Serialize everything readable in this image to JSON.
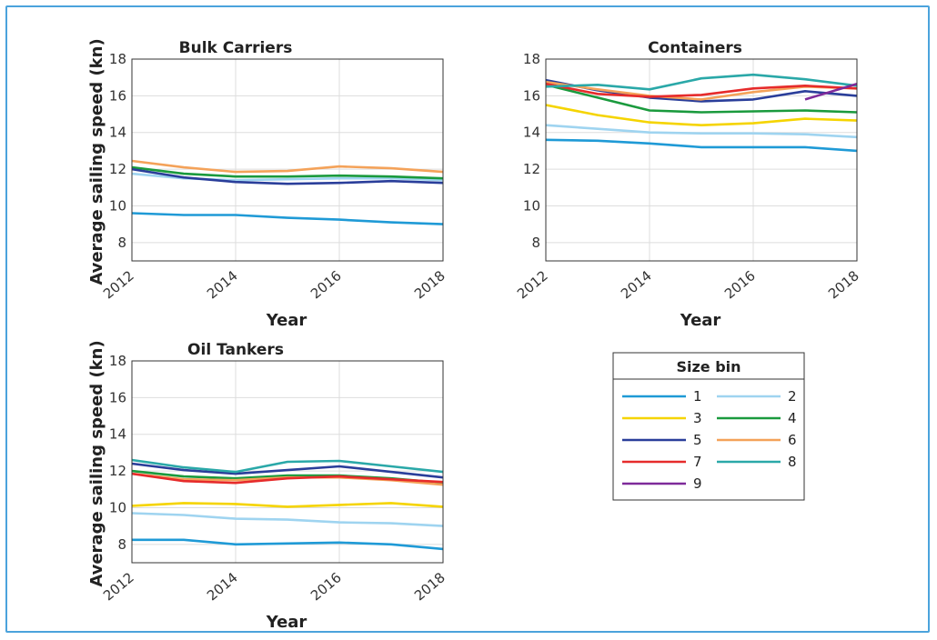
{
  "colors": {
    "frame": "#4ba3dc",
    "axis": "#333333",
    "grid": "#dddddd",
    "series": {
      "1": "#1f9ad6",
      "2": "#9fd4f0",
      "3": "#f5d400",
      "4": "#1a9a3d",
      "5": "#2a3e9a",
      "6": "#f4a259",
      "7": "#e62b2b",
      "8": "#2aa8a8",
      "9": "#7e2a9a"
    }
  },
  "legend": {
    "title": "Size bin",
    "entries": [
      "1",
      "2",
      "3",
      "4",
      "5",
      "6",
      "7",
      "8",
      "9"
    ]
  },
  "chart_data": [
    {
      "type": "line",
      "title": "Bulk Carriers",
      "xlabel": "Year",
      "ylabel": "Average sailing speed (kn)",
      "xlim": [
        2012,
        2018
      ],
      "ylim": [
        7,
        18
      ],
      "xticks": [
        2012,
        2014,
        2016,
        2018
      ],
      "yticks": [
        8,
        10,
        12,
        14,
        16,
        18
      ],
      "grid": true,
      "x": [
        2012,
        2013,
        2014,
        2015,
        2016,
        2017,
        2018
      ],
      "series": [
        {
          "name": "1",
          "values": [
            9.6,
            9.5,
            9.5,
            9.35,
            9.25,
            9.1,
            9.0
          ]
        },
        {
          "name": "2",
          "values": [
            11.75,
            11.5,
            11.4,
            11.45,
            11.5,
            11.5,
            11.4
          ]
        },
        {
          "name": "4",
          "values": [
            12.1,
            11.75,
            11.6,
            11.6,
            11.65,
            11.6,
            11.5
          ]
        },
        {
          "name": "5",
          "values": [
            12.0,
            11.55,
            11.3,
            11.2,
            11.25,
            11.35,
            11.25
          ]
        },
        {
          "name": "6",
          "values": [
            12.45,
            12.1,
            11.85,
            11.9,
            12.15,
            12.05,
            11.85
          ]
        }
      ]
    },
    {
      "type": "line",
      "title": "Containers",
      "xlabel": "Year",
      "ylabel": "",
      "xlim": [
        2012,
        2018
      ],
      "ylim": [
        7,
        18
      ],
      "xticks": [
        2012,
        2014,
        2016,
        2018
      ],
      "yticks": [
        8,
        10,
        12,
        14,
        16,
        18
      ],
      "grid": true,
      "x": [
        2012,
        2013,
        2014,
        2015,
        2016,
        2017,
        2018
      ],
      "series": [
        {
          "name": "1",
          "values": [
            13.6,
            13.55,
            13.4,
            13.2,
            13.2,
            13.2,
            13.0
          ]
        },
        {
          "name": "2",
          "values": [
            14.4,
            14.2,
            14.0,
            13.95,
            13.95,
            13.9,
            13.75
          ]
        },
        {
          "name": "3",
          "values": [
            15.5,
            14.95,
            14.55,
            14.4,
            14.5,
            14.75,
            14.65
          ]
        },
        {
          "name": "4",
          "values": [
            16.6,
            15.9,
            15.2,
            15.1,
            15.15,
            15.2,
            15.1
          ]
        },
        {
          "name": "5",
          "values": [
            16.85,
            16.3,
            15.9,
            15.7,
            15.8,
            16.25,
            16.0
          ]
        },
        {
          "name": "6",
          "values": [
            16.75,
            16.35,
            16.0,
            15.8,
            16.2,
            16.5,
            16.4
          ]
        },
        {
          "name": "7",
          "values": [
            16.65,
            16.1,
            15.95,
            16.05,
            16.4,
            16.55,
            16.4
          ]
        },
        {
          "name": "8",
          "values": [
            16.5,
            16.6,
            16.35,
            16.95,
            17.15,
            16.9,
            16.55
          ]
        },
        {
          "name": "9",
          "values": [
            null,
            null,
            null,
            null,
            null,
            15.8,
            16.65
          ]
        }
      ]
    },
    {
      "type": "line",
      "title": "Oil Tankers",
      "xlabel": "Year",
      "ylabel": "Average sailing speed (kn)",
      "xlim": [
        2012,
        2018
      ],
      "ylim": [
        7,
        18
      ],
      "xticks": [
        2012,
        2014,
        2016,
        2018
      ],
      "yticks": [
        8,
        10,
        12,
        14,
        16,
        18
      ],
      "grid": true,
      "x": [
        2012,
        2013,
        2014,
        2015,
        2016,
        2017,
        2018
      ],
      "series": [
        {
          "name": "1",
          "values": [
            8.25,
            8.25,
            8.0,
            8.05,
            8.1,
            8.0,
            7.75
          ]
        },
        {
          "name": "2",
          "values": [
            9.7,
            9.6,
            9.4,
            9.35,
            9.2,
            9.15,
            9.0
          ]
        },
        {
          "name": "3",
          "values": [
            10.1,
            10.25,
            10.2,
            10.05,
            10.15,
            10.25,
            10.05
          ]
        },
        {
          "name": "4",
          "values": [
            12.0,
            11.7,
            11.6,
            11.75,
            11.75,
            11.6,
            11.35
          ]
        },
        {
          "name": "5",
          "values": [
            12.4,
            12.05,
            11.85,
            12.05,
            12.25,
            11.95,
            11.65
          ]
        },
        {
          "name": "6",
          "values": [
            11.85,
            11.55,
            11.5,
            11.65,
            11.65,
            11.5,
            11.25
          ]
        },
        {
          "name": "7",
          "values": [
            11.85,
            11.45,
            11.35,
            11.6,
            11.7,
            11.55,
            11.4
          ]
        },
        {
          "name": "8",
          "values": [
            12.6,
            12.2,
            11.95,
            12.5,
            12.55,
            12.25,
            11.95
          ]
        }
      ]
    }
  ]
}
